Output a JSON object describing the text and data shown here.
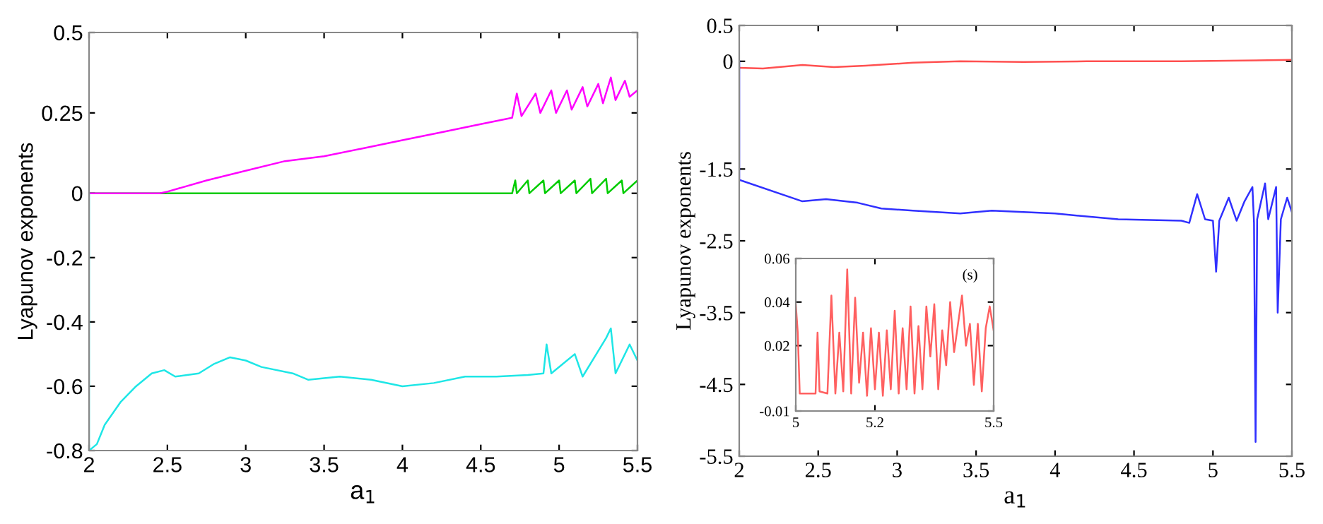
{
  "chart_data": [
    {
      "type": "line",
      "xlabel": "a$_{1}$",
      "ylabel": "Lyapunov exponents",
      "xlim": [
        2,
        5.5
      ],
      "xticks": [
        2,
        2.5,
        3,
        3.5,
        4,
        4.5,
        5,
        5.5
      ],
      "ylim": [
        -0.8,
        0.5
      ],
      "yticks": [
        -0.8,
        -0.6,
        -0.4,
        -0.2,
        0,
        0.25,
        0.5
      ],
      "grid": false,
      "series": [
        {
          "color": "#00cc00",
          "x": [
            2,
            4.7,
            4.72,
            4.73,
            4.8,
            4.81,
            4.9,
            4.91,
            5.0,
            5.01,
            5.1,
            5.11,
            5.2,
            5.21,
            5.3,
            5.31,
            5.4,
            5.41,
            5.5
          ],
          "values": [
            0,
            0,
            0.04,
            0,
            0.04,
            0,
            0.04,
            0,
            0.04,
            0,
            0.04,
            0,
            0.045,
            0,
            0.045,
            0,
            0.04,
            0,
            0.04
          ]
        },
        {
          "color": "#ff00ff",
          "x": [
            2,
            2.45,
            2.5,
            2.75,
            3,
            3.25,
            3.5,
            3.75,
            4,
            4.25,
            4.5,
            4.7,
            4.73,
            4.76,
            4.85,
            4.88,
            4.95,
            4.98,
            5.05,
            5.08,
            5.15,
            5.18,
            5.25,
            5.28,
            5.33,
            5.36,
            5.42,
            5.45,
            5.5
          ],
          "values": [
            0,
            0,
            0.005,
            0.04,
            0.07,
            0.1,
            0.115,
            0.14,
            0.165,
            0.19,
            0.215,
            0.235,
            0.31,
            0.24,
            0.31,
            0.25,
            0.32,
            0.25,
            0.32,
            0.26,
            0.33,
            0.27,
            0.34,
            0.28,
            0.36,
            0.29,
            0.35,
            0.3,
            0.32
          ]
        },
        {
          "color": "#1ee6e6",
          "x": [
            2,
            2.0,
            2.05,
            2.1,
            2.2,
            2.3,
            2.4,
            2.48,
            2.55,
            2.7,
            2.8,
            2.9,
            3,
            3.1,
            3.3,
            3.4,
            3.6,
            3.8,
            4,
            4.2,
            4.4,
            4.6,
            4.8,
            4.9,
            4.92,
            4.95,
            5.1,
            5.15,
            5.3,
            5.33,
            5.36,
            5.45,
            5.5
          ],
          "values": [
            0,
            -0.8,
            -0.78,
            -0.72,
            -0.65,
            -0.6,
            -0.56,
            -0.55,
            -0.57,
            -0.56,
            -0.53,
            -0.51,
            -0.52,
            -0.54,
            -0.56,
            -0.58,
            -0.57,
            -0.58,
            -0.6,
            -0.59,
            -0.57,
            -0.57,
            -0.565,
            -0.56,
            -0.47,
            -0.56,
            -0.5,
            -0.57,
            -0.45,
            -0.42,
            -0.56,
            -0.47,
            -0.52
          ]
        }
      ]
    },
    {
      "type": "line",
      "xlabel": "a$_{1}$",
      "ylabel": "Lyapunov exponents",
      "xlim": [
        2,
        5.5
      ],
      "xticks": [
        2,
        2.5,
        3,
        3.5,
        4,
        4.5,
        5,
        5.5
      ],
      "ylim": [
        -5.5,
        0.5
      ],
      "yticks": [
        -5.5,
        -4.5,
        -3.5,
        -2.5,
        -1.5,
        0,
        0.5
      ],
      "grid": false,
      "series": [
        {
          "color": "#ff5050",
          "x": [
            2,
            2.15,
            2.4,
            2.6,
            2.8,
            3.1,
            3.4,
            3.8,
            4.2,
            4.8,
            5.5
          ],
          "values": [
            -0.09,
            -0.1,
            -0.05,
            -0.08,
            -0.06,
            -0.02,
            0,
            -0.01,
            0,
            0,
            0.02
          ]
        },
        {
          "color": "#3030ff",
          "x": [
            2,
            2.0,
            2.4,
            2.55,
            2.75,
            2.9,
            3.1,
            3.4,
            3.6,
            4,
            4.4,
            4.8,
            4.85,
            4.9,
            4.95,
            5.0,
            5.02,
            5.04,
            5.1,
            5.15,
            5.2,
            5.25,
            5.26,
            5.27,
            5.28,
            5.33,
            5.35,
            5.4,
            5.41,
            5.43,
            5.47,
            5.5
          ],
          "values": [
            0,
            -1.65,
            -1.95,
            -1.92,
            -1.97,
            -2.05,
            -2.08,
            -2.12,
            -2.08,
            -2.12,
            -2.2,
            -2.22,
            -2.25,
            -1.85,
            -2.2,
            -2.22,
            -2.93,
            -2.22,
            -1.9,
            -2.22,
            -1.95,
            -1.75,
            -2.25,
            -5.3,
            -2.2,
            -1.7,
            -2.2,
            -1.75,
            -3.5,
            -2.2,
            -1.9,
            -2.1
          ]
        }
      ]
    },
    {
      "type": "line",
      "annotations": [
        "(s)"
      ],
      "xlim": [
        5,
        5.5
      ],
      "xticks": [
        5,
        5.2,
        5.5
      ],
      "ylim": [
        -0.01,
        0.06
      ],
      "yticks": [
        -0.01,
        0.02,
        0.04,
        0.06
      ],
      "grid": false,
      "series": [
        {
          "color": "#ff6060",
          "x": [
            5,
            5.005,
            5.01,
            5.03,
            5.05,
            5.055,
            5.06,
            5.08,
            5.09,
            5.1,
            5.11,
            5.12,
            5.13,
            5.14,
            5.15,
            5.16,
            5.17,
            5.18,
            5.19,
            5.2,
            5.21,
            5.22,
            5.23,
            5.24,
            5.25,
            5.26,
            5.27,
            5.28,
            5.29,
            5.3,
            5.31,
            5.32,
            5.33,
            5.34,
            5.35,
            5.36,
            5.37,
            5.38,
            5.39,
            5.4,
            5.41,
            5.42,
            5.43,
            5.44,
            5.45,
            5.46,
            5.47,
            5.48,
            5.49,
            5.5
          ],
          "values": [
            0.039,
            0.026,
            -0.002,
            -0.002,
            -0.002,
            0.026,
            -0.001,
            -0.002,
            0.043,
            -0.002,
            0.026,
            -0.001,
            0.055,
            -0.002,
            0.042,
            0.003,
            0.026,
            -0.003,
            0.028,
            0.0,
            0.026,
            -0.003,
            0.027,
            0.0,
            0.036,
            -0.002,
            0.028,
            0.0,
            0.038,
            -0.002,
            0.029,
            0.0,
            0.038,
            0.015,
            0.039,
            0.0,
            0.027,
            0.011,
            0.04,
            0.017,
            0.03,
            0.043,
            0.02,
            0.03,
            0.002,
            0.03,
            -0.001,
            0.028,
            0.038,
            0.027
          ]
        }
      ]
    }
  ]
}
